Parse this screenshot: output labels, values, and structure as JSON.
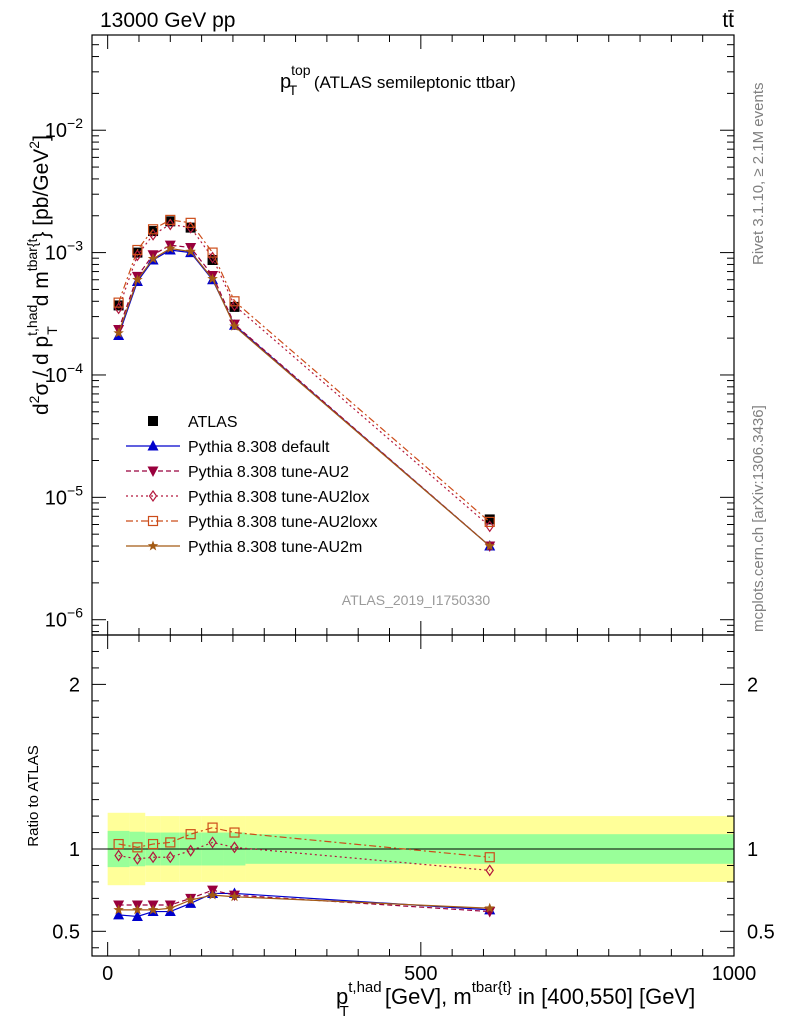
{
  "header": {
    "energy_label": "13000 GeV pp",
    "process_label": "tt̄"
  },
  "side": {
    "rivet": "Rivet 3.1.10, ≥ 2.1M events",
    "mcplots": "mcplots.cern.ch [arXiv:1306.3436]"
  },
  "title": {
    "main": "p",
    "sup": "top",
    "sub": "T",
    "rest": " (ATLAS semileptonic ttbar)"
  },
  "watermark": "ATLAS_2019_I1750330",
  "ylabel_main": {
    "d2": "d",
    "sup2": "2",
    "sigma": "σ / d p",
    "sup_thad": "t,had",
    "sub_T": "T",
    "dm": " d m",
    "sup_tbar": "tbar{t",
    "brace": "}",
    "units": " [pb/GeV",
    "units_sup": "2",
    "units_end": "]"
  },
  "ylabel_ratio": "Ratio to ATLAS",
  "xlabel": {
    "p": "p",
    "sup": "t,had",
    "sub": "T",
    "mid": " [GeV], m",
    "sup2": "tbar{t}",
    "end": " in [400,550] [GeV]"
  },
  "chart_data": {
    "type": "line",
    "x_axis": {
      "range": [
        -25,
        1000
      ],
      "ticks": [
        0,
        500,
        1000
      ],
      "tick_labels": [
        "0",
        "500",
        "1000"
      ]
    },
    "main_panel": {
      "yscale": "log",
      "yrange": [
        7.5e-07,
        0.06
      ],
      "y_ticks": [
        {
          "value": 1e-06,
          "base": "10",
          "exp": "−6"
        },
        {
          "value": 1e-05,
          "base": "10",
          "exp": "−5"
        },
        {
          "value": 0.0001,
          "base": "10",
          "exp": "−4"
        },
        {
          "value": 0.001,
          "base": "10",
          "exp": "−3"
        },
        {
          "value": 0.01,
          "base": "10",
          "exp": "−2"
        }
      ]
    },
    "ratio_panel": {
      "yscale": "linear",
      "yrange": [
        0.35,
        2.3
      ],
      "y_ticks": [
        0.5,
        1,
        2
      ],
      "y_tick_labels": [
        "0.5",
        "1",
        "2"
      ],
      "bands": {
        "edges": [
          0,
          35,
          60,
          85,
          115,
          150,
          185,
          220,
          1000
        ],
        "inner_half_width": [
          0.11,
          0.105,
          0.1,
          0.1,
          0.1,
          0.1,
          0.1,
          0.09
        ],
        "outer_half_width": [
          0.22,
          0.22,
          0.2,
          0.2,
          0.2,
          0.2,
          0.2,
          0.2
        ]
      }
    },
    "x": [
      17.5,
      47.5,
      72.5,
      100,
      132.5,
      167.5,
      202.5,
      610
    ],
    "series": [
      {
        "name": "ATLAS",
        "marker": "square-filled",
        "color": "#000000",
        "dash": "",
        "values": [
          0.00037,
          0.001,
          0.0015,
          0.0018,
          0.0016,
          0.00087,
          0.00036,
          6.6e-06
        ],
        "ratio": [
          1,
          1,
          1,
          1,
          1,
          1,
          1,
          1
        ]
      },
      {
        "name": "Pythia 8.308 default",
        "marker": "triangle-up-filled",
        "color": "#0000cc",
        "dash": "",
        "values": [
          0.00021,
          0.00058,
          0.00087,
          0.00105,
          0.001,
          0.0006,
          0.000255,
          4e-06
        ],
        "ratio": [
          0.6,
          0.59,
          0.62,
          0.62,
          0.67,
          0.73,
          0.73,
          0.63
        ]
      },
      {
        "name": "Pythia 8.308 tune-AU2",
        "marker": "triangle-down-filled",
        "color": "#99003d",
        "dash": "5,3",
        "values": [
          0.000235,
          0.00064,
          0.00096,
          0.00115,
          0.0011,
          0.00065,
          0.00026,
          4e-06
        ],
        "ratio": [
          0.66,
          0.66,
          0.66,
          0.66,
          0.7,
          0.75,
          0.72,
          0.62
        ]
      },
      {
        "name": "Pythia 8.308 tune-AU2lox",
        "marker": "diamond-open",
        "color": "#b3183d",
        "dash": "2,3",
        "values": [
          0.00035,
          0.00095,
          0.0014,
          0.0017,
          0.0016,
          0.00091,
          0.00037,
          5.8e-06
        ],
        "ratio": [
          0.96,
          0.94,
          0.95,
          0.95,
          0.99,
          1.04,
          1.01,
          0.87
        ]
      },
      {
        "name": "Pythia 8.308 tune-AU2loxx",
        "marker": "square-open",
        "color": "#cc4d1a",
        "dash": "7,3,2,3",
        "values": [
          0.00039,
          0.00105,
          0.00155,
          0.00185,
          0.00175,
          0.001,
          0.0004,
          6.3e-06
        ],
        "ratio": [
          1.03,
          1.01,
          1.03,
          1.04,
          1.09,
          1.13,
          1.1,
          0.95
        ]
      },
      {
        "name": "Pythia 8.308 tune-AU2m",
        "marker": "star-filled",
        "color": "#a35a14",
        "dash": "",
        "values": [
          0.00022,
          0.0006,
          0.00089,
          0.00108,
          0.00102,
          0.00061,
          0.00025,
          4e-06
        ],
        "ratio": [
          0.63,
          0.63,
          0.63,
          0.64,
          0.69,
          0.72,
          0.71,
          0.64
        ]
      }
    ],
    "colors": {
      "band_inner": "#99ff99",
      "band_outer": "#ffff99"
    }
  }
}
